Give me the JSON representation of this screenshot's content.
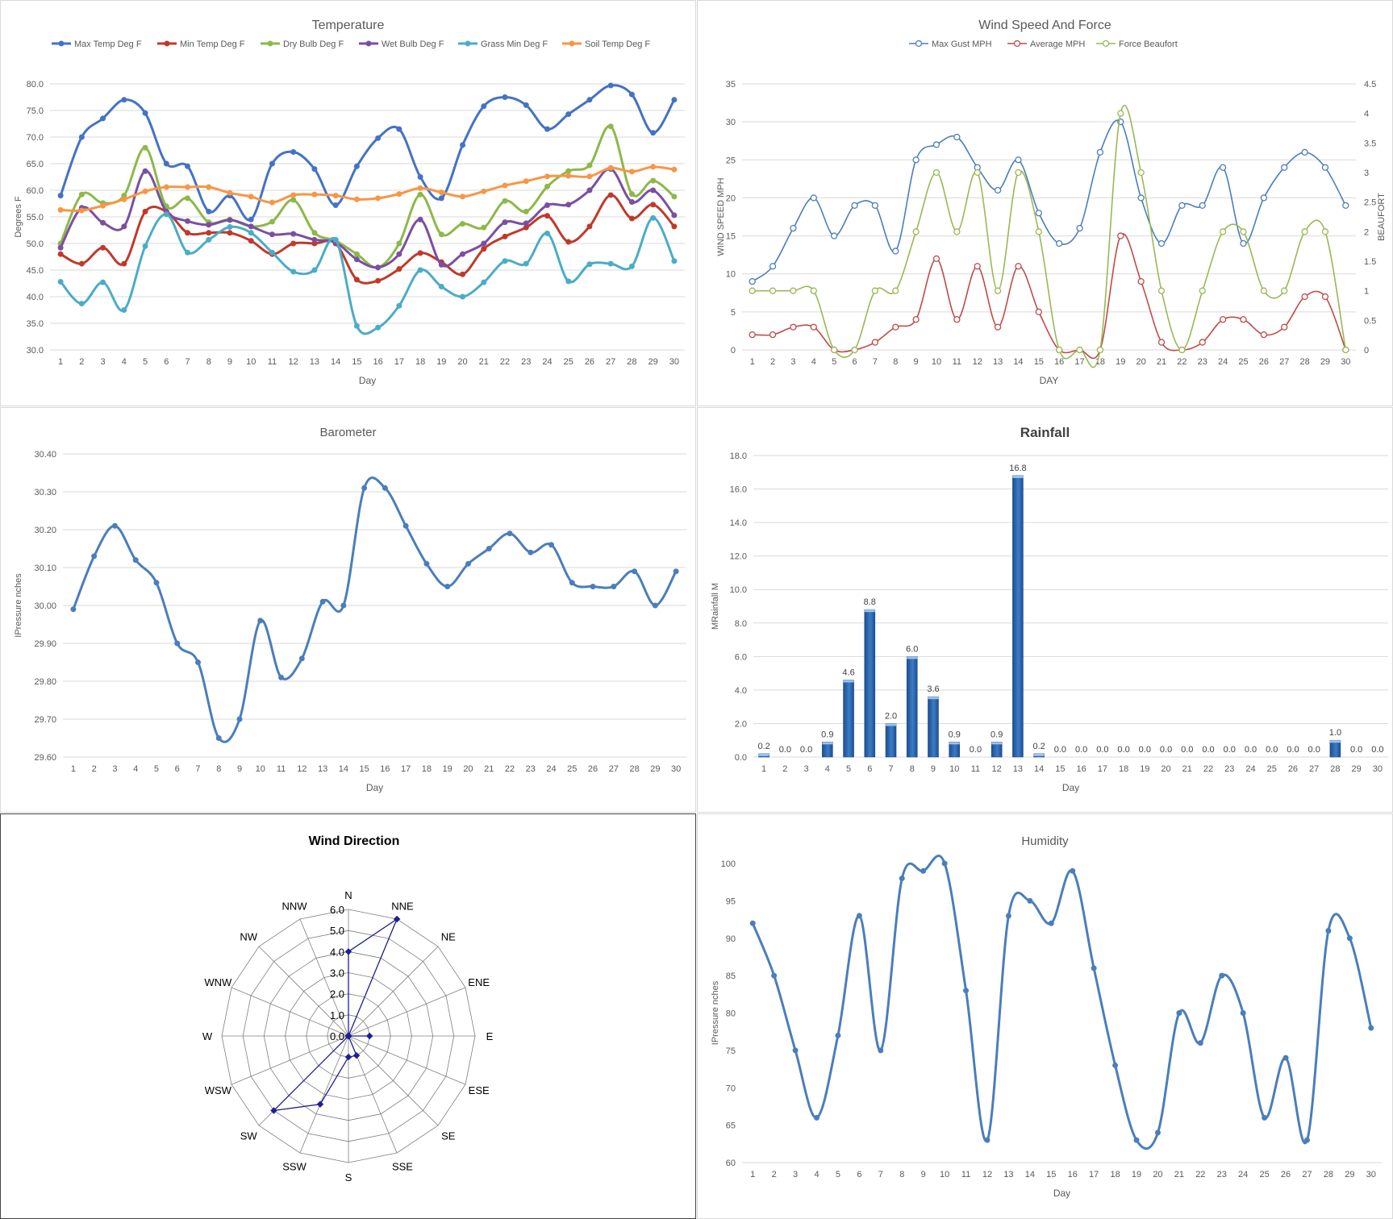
{
  "chart_data": [
    {
      "id": "temperature",
      "type": "line",
      "title": "Temperature",
      "xlabel": "Day",
      "ylabel": "Degrees F",
      "ylim": [
        30,
        80
      ],
      "yticks": [
        "30.0",
        "35.0",
        "40.0",
        "45.0",
        "50.0",
        "55.0",
        "60.0",
        "65.0",
        "70.0",
        "75.0",
        "80.0"
      ],
      "categories": [
        "1",
        "2",
        "3",
        "4",
        "5",
        "6",
        "7",
        "8",
        "9",
        "10",
        "11",
        "12",
        "13",
        "14",
        "15",
        "16",
        "17",
        "18",
        "19",
        "20",
        "21",
        "22",
        "23",
        "24",
        "25",
        "26",
        "27",
        "28",
        "29",
        "30"
      ],
      "grid": true,
      "legend": "top",
      "series": [
        {
          "name": "Max Temp Deg F",
          "color": "#4472C4",
          "values": [
            59,
            70,
            73.5,
            77,
            74.5,
            65,
            64.5,
            56,
            59,
            54.5,
            65,
            67.2,
            64,
            57.2,
            64.5,
            69.8,
            71.5,
            62.5,
            58.5,
            68.5,
            75.8,
            77.5,
            76,
            71.5,
            74.3,
            77,
            79.7,
            78,
            70.8,
            77
          ]
        },
        {
          "name": "Min Temp Deg F",
          "color": "#C0392B",
          "values": [
            48,
            46.2,
            49.2,
            46.2,
            56,
            56,
            52,
            52,
            52,
            50.5,
            48,
            50,
            50,
            50,
            43.2,
            43,
            45.2,
            48.2,
            46.5,
            44.2,
            49,
            51.3,
            53,
            55.2,
            50.3,
            53.2,
            59.1,
            54.7,
            57.3,
            53.2
          ]
        },
        {
          "name": "Dry Bulb Deg F",
          "color": "#8DB84A",
          "values": [
            50,
            59.2,
            57.6,
            59,
            68,
            57,
            58.5,
            54,
            54.5,
            53.2,
            54.1,
            58.2,
            52,
            50.5,
            48,
            45.5,
            50,
            59.2,
            51.7,
            53.7,
            53,
            58,
            56,
            60.7,
            63.6,
            64.7,
            72,
            59.3,
            61.8,
            58.8
          ]
        },
        {
          "name": "Wet Bulb Deg F",
          "color": "#7B4FA0",
          "values": [
            49.2,
            56.7,
            53.9,
            53.2,
            63.6,
            56,
            54.2,
            53.5,
            54.4,
            53.2,
            51.7,
            51.8,
            50.7,
            50.2,
            47,
            45.5,
            48,
            54.5,
            46,
            48,
            50,
            54,
            53.8,
            57.2,
            57.3,
            60,
            64,
            57.8,
            60,
            55.3
          ]
        },
        {
          "name": "Grass Min Deg F",
          "color": "#4BACC6",
          "values": [
            42.8,
            38.7,
            42.7,
            37.5,
            49.5,
            55.5,
            48.3,
            50.7,
            53.1,
            52,
            48.3,
            44.7,
            45,
            50.7,
            34.5,
            34.2,
            38.3,
            45,
            41.9,
            40,
            42.7,
            46.7,
            46.2,
            51.9,
            42.9,
            46.1,
            46.2,
            45.7,
            54.8,
            46.7
          ]
        },
        {
          "name": "Soil Temp Deg F",
          "color": "#F79646",
          "values": [
            56.3,
            56.2,
            57.1,
            58.3,
            59.8,
            60.6,
            60.6,
            60.6,
            59.5,
            58.8,
            57.7,
            59.1,
            59.2,
            59,
            58.3,
            58.5,
            59.3,
            60.4,
            59.6,
            58.8,
            59.8,
            60.9,
            61.7,
            62.6,
            62.7,
            62.6,
            64.2,
            63.5,
            64.4,
            63.9
          ]
        }
      ]
    },
    {
      "id": "wind",
      "type": "line",
      "title": "Wind Speed And Force",
      "xlabel": "DAY",
      "ylabel": "WIND SPEED MPH",
      "y2label": "BEAUFORT",
      "ylim": [
        0,
        35
      ],
      "y2lim": [
        0,
        4.5
      ],
      "yticks": [
        "0",
        "5",
        "10",
        "15",
        "20",
        "25",
        "30",
        "35"
      ],
      "y2ticks": [
        "0",
        "0.5",
        "1",
        "1.5",
        "2",
        "2.5",
        "3",
        "3.5",
        "4",
        "4.5"
      ],
      "categories": [
        "1",
        "2",
        "3",
        "4",
        "5",
        "6",
        "7",
        "8",
        "9",
        "10",
        "11",
        "12",
        "13",
        "14",
        "15",
        "16",
        "17",
        "18",
        "19",
        "20",
        "21",
        "22",
        "23",
        "24",
        "25",
        "26",
        "27",
        "28",
        "29",
        "30"
      ],
      "grid": true,
      "legend": "top",
      "series": [
        {
          "name": "Max Gust MPH",
          "color": "#4A7EBB",
          "axis": "left",
          "values": [
            9,
            11,
            16,
            20,
            15,
            19,
            19,
            13,
            25,
            27,
            28,
            24,
            21,
            25,
            18,
            14,
            16,
            26,
            30,
            20,
            14,
            19,
            19,
            24,
            14,
            20,
            24,
            26,
            24,
            19
          ]
        },
        {
          "name": "Average MPH",
          "color": "#BE4B48",
          "axis": "left",
          "values": [
            2,
            2,
            3,
            3,
            0,
            0,
            1,
            3,
            4,
            12,
            4,
            11,
            3,
            11,
            5,
            0,
            0,
            0,
            15,
            9,
            1,
            0,
            1,
            4,
            4,
            2,
            3,
            7,
            7,
            0
          ]
        },
        {
          "name": "Force Beaufort",
          "color": "#98B954",
          "axis": "right",
          "values": [
            1,
            1,
            1,
            1,
            0,
            0,
            1,
            1,
            2,
            3,
            2,
            3,
            1,
            3,
            2,
            0,
            0,
            0,
            4,
            3,
            1,
            0,
            1,
            2,
            2,
            1,
            1,
            2,
            2,
            0
          ]
        }
      ]
    },
    {
      "id": "barometer",
      "type": "line",
      "title": "Barometer",
      "xlabel": "Day",
      "ylabel": "IPressure nches",
      "ylim": [
        29.6,
        30.4
      ],
      "yticks": [
        "29.60",
        "29.70",
        "29.80",
        "29.90",
        "30.00",
        "30.10",
        "30.20",
        "30.30",
        "30.40"
      ],
      "categories": [
        "1",
        "2",
        "3",
        "4",
        "5",
        "6",
        "7",
        "8",
        "9",
        "10",
        "11",
        "12",
        "13",
        "14",
        "15",
        "16",
        "17",
        "18",
        "19",
        "20",
        "21",
        "22",
        "23",
        "24",
        "25",
        "26",
        "27",
        "28",
        "29",
        "30"
      ],
      "grid": true,
      "series": [
        {
          "name": "",
          "color": "#4A7EBB",
          "values": [
            29.99,
            30.13,
            30.21,
            30.12,
            30.06,
            29.9,
            29.85,
            29.65,
            29.7,
            29.96,
            29.81,
            29.86,
            30.01,
            30.0,
            30.31,
            30.31,
            30.21,
            30.11,
            30.05,
            30.11,
            30.15,
            30.19,
            30.14,
            30.16,
            30.06,
            30.05,
            30.05,
            30.09,
            30.0,
            30.09
          ]
        }
      ]
    },
    {
      "id": "rainfall",
      "type": "bar",
      "title": "Rainfall",
      "xlabel": "Day",
      "ylabel": "MRainfall M",
      "ylim": [
        0,
        18
      ],
      "yticks": [
        "0.0",
        "2.0",
        "4.0",
        "6.0",
        "8.0",
        "10.0",
        "12.0",
        "14.0",
        "16.0",
        "18.0"
      ],
      "categories": [
        "1",
        "2",
        "3",
        "4",
        "5",
        "6",
        "7",
        "8",
        "9",
        "10",
        "11",
        "12",
        "13",
        "14",
        "15",
        "16",
        "17",
        "18",
        "19",
        "20",
        "21",
        "22",
        "23",
        "24",
        "25",
        "26",
        "27",
        "28",
        "29",
        "30"
      ],
      "values": [
        0.2,
        0,
        0,
        0.9,
        4.6,
        8.8,
        2.0,
        6.0,
        3.6,
        0.9,
        0,
        0.9,
        16.8,
        0.2,
        0,
        0,
        0,
        0,
        0,
        0,
        0,
        0,
        0,
        0,
        0,
        0,
        0,
        1.0,
        0,
        0
      ],
      "labels": [
        "0.2",
        "0.0",
        "0.0",
        "0.9",
        "4.6",
        "8.8",
        "2.0",
        "6.0",
        "3.6",
        "0.9",
        "0.0",
        "0.9",
        "16.8",
        "0.2",
        "0.0",
        "0.0",
        "0.0",
        "0.0",
        "0.0",
        "0.0",
        "0.0",
        "0.0",
        "0.0",
        "0.0",
        "0.0",
        "0.0",
        "0.0",
        "1.0",
        "0.0",
        "0.0"
      ],
      "grid": true,
      "color": "#2F6EB5"
    },
    {
      "id": "wind-direction",
      "type": "radar",
      "title": "Wind Direction",
      "categories": [
        "N",
        "NNE",
        "NE",
        "ENE",
        "E",
        "ESE",
        "SE",
        "SSE",
        "S",
        "SSW",
        "SW",
        "WSW",
        "W",
        "WNW",
        "NW",
        "NNW"
      ],
      "values": [
        4.0,
        6.0,
        0,
        0,
        1.0,
        0,
        0,
        1.0,
        1.0,
        3.5,
        5.0,
        0,
        0,
        0,
        0,
        0
      ],
      "rmax": 6.0,
      "rticks": [
        "0.0",
        "1.0",
        "2.0",
        "3.0",
        "4.0",
        "5.0",
        "6.0"
      ],
      "color": "#1F1F8F"
    },
    {
      "id": "humidity",
      "type": "line",
      "title": "Humidity",
      "xlabel": "Day",
      "ylabel": "IPressure nches",
      "ylim": [
        60,
        100
      ],
      "yticks": [
        "60",
        "65",
        "70",
        "75",
        "80",
        "85",
        "90",
        "95",
        "100"
      ],
      "categories": [
        "1",
        "2",
        "3",
        "4",
        "5",
        "6",
        "7",
        "8",
        "9",
        "10",
        "11",
        "12",
        "13",
        "14",
        "15",
        "16",
        "17",
        "18",
        "19",
        "20",
        "21",
        "22",
        "23",
        "24",
        "25",
        "26",
        "27",
        "28",
        "29",
        "30"
      ],
      "grid": false,
      "series": [
        {
          "name": "",
          "color": "#4A7EBB",
          "values": [
            92,
            85,
            75,
            66,
            77,
            93,
            75,
            98,
            99,
            100,
            83,
            63,
            93,
            95,
            92,
            99,
            86,
            73,
            63,
            64,
            80,
            76,
            85,
            80,
            66,
            74,
            63,
            91,
            90,
            78
          ]
        }
      ]
    }
  ]
}
